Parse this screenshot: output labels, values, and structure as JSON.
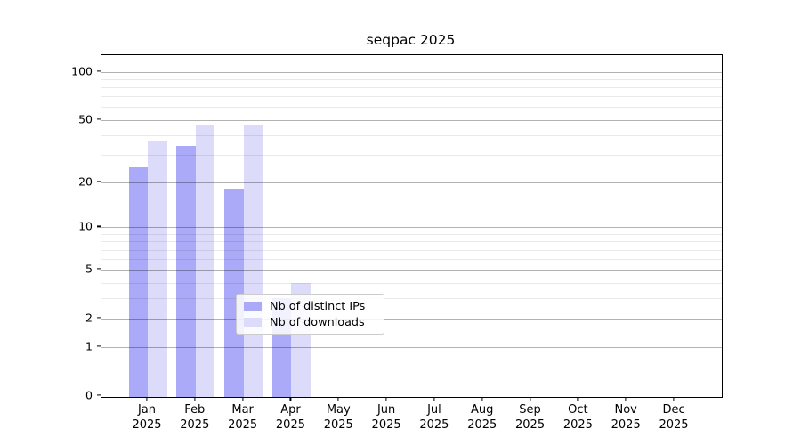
{
  "chart_data": {
    "type": "bar",
    "title": "seqpac 2025",
    "categories": [
      "Jan 2025",
      "Feb 2025",
      "Mar 2025",
      "Apr 2025",
      "May 2025",
      "Jun 2025",
      "Jul 2025",
      "Aug 2025",
      "Sep 2025",
      "Oct 2025",
      "Nov 2025",
      "Dec 2025"
    ],
    "series": [
      {
        "name": "Nb of distinct IPs",
        "color": "#aaaaf8",
        "values": [
          25,
          34,
          18,
          3,
          0,
          0,
          0,
          0,
          0,
          0,
          0,
          0
        ]
      },
      {
        "name": "Nb of downloads",
        "color": "#dcdcfa",
        "values": [
          37,
          46,
          46,
          4,
          0,
          0,
          0,
          0,
          0,
          0,
          0,
          0
        ]
      }
    ],
    "xlabel": "",
    "ylabel": "",
    "y_axis": {
      "scale": "log10(1+x)",
      "tick_labels": [
        100,
        50,
        20,
        10,
        5,
        2,
        1,
        0
      ],
      "minor_gridlines": [
        3,
        4,
        6,
        7,
        8,
        9,
        30,
        40,
        60,
        70,
        80,
        90
      ],
      "ylim": [
        0,
        126
      ]
    },
    "grid": "on",
    "legend": {
      "position": "lower-center-left",
      "entries": [
        "Nb of distinct IPs",
        "Nb of downloads"
      ]
    },
    "colors": {
      "distinct_ips_bar": "#aaaaf8",
      "downloads_bar": "#dcdcfa",
      "major_grid": "#b3b3b3",
      "minor_grid": "#e8e8e8",
      "axis": "#000000",
      "background": "#ffffff"
    }
  }
}
